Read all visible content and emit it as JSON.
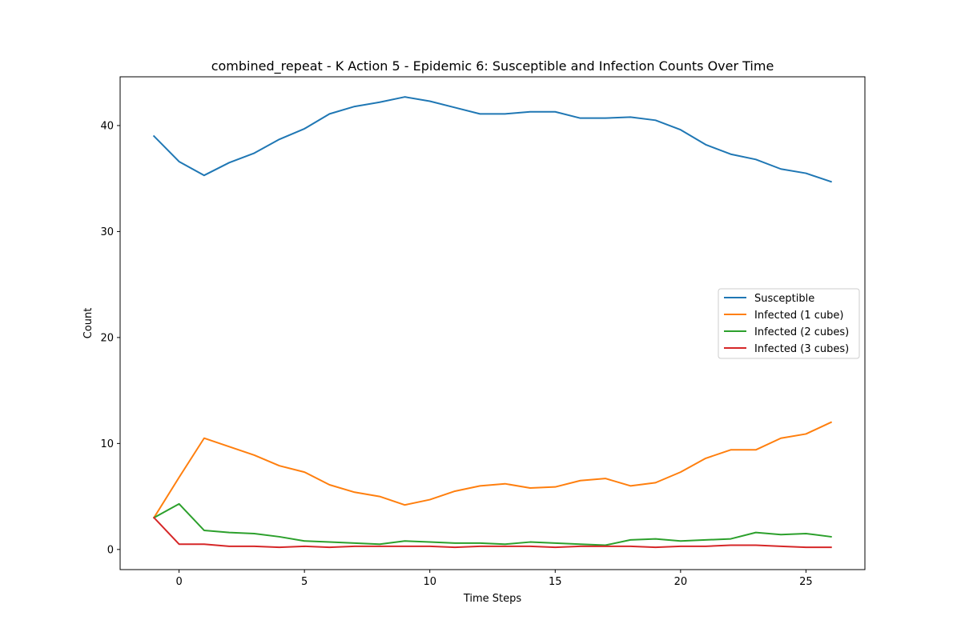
{
  "chart_data": {
    "type": "line",
    "title": "combined_repeat - K Action 5 - Epidemic 6: Susceptible and Infection Counts Over Time",
    "xlabel": "Time Steps",
    "ylabel": "Count",
    "xlim": [
      -2.35,
      27.35
    ],
    "ylim": [
      -1.9,
      44.6
    ],
    "xticks": [
      0,
      5,
      10,
      15,
      20,
      25
    ],
    "yticks": [
      0,
      10,
      20,
      30,
      40
    ],
    "grid": false,
    "legend_position": "center-right",
    "x": [
      -1,
      0,
      1,
      2,
      3,
      4,
      5,
      6,
      7,
      8,
      9,
      10,
      11,
      12,
      13,
      14,
      15,
      16,
      17,
      18,
      19,
      20,
      21,
      22,
      23,
      24,
      25,
      26
    ],
    "series": [
      {
        "name": "Susceptible",
        "color": "#1f77b4",
        "values": [
          39.0,
          36.6,
          35.3,
          36.5,
          37.4,
          38.7,
          39.7,
          41.1,
          41.8,
          42.2,
          42.7,
          42.3,
          41.7,
          41.1,
          41.1,
          41.3,
          41.3,
          40.7,
          40.7,
          40.8,
          40.5,
          39.6,
          38.2,
          37.3,
          36.8,
          35.9,
          35.5,
          34.7
        ]
      },
      {
        "name": "Infected (1 cube)",
        "color": "#ff7f0e",
        "values": [
          3.0,
          6.8,
          10.5,
          9.7,
          8.9,
          7.9,
          7.3,
          6.1,
          5.4,
          5.0,
          4.2,
          4.7,
          5.5,
          6.0,
          6.2,
          5.8,
          5.9,
          6.5,
          6.7,
          6.0,
          6.3,
          7.3,
          8.6,
          9.4,
          9.4,
          10.5,
          10.9,
          12.0
        ]
      },
      {
        "name": "Infected (2 cubes)",
        "color": "#2ca02c",
        "values": [
          3.0,
          4.3,
          1.8,
          1.6,
          1.5,
          1.2,
          0.8,
          0.7,
          0.6,
          0.5,
          0.8,
          0.7,
          0.6,
          0.6,
          0.5,
          0.7,
          0.6,
          0.5,
          0.4,
          0.9,
          1.0,
          0.8,
          0.9,
          1.0,
          1.6,
          1.4,
          1.5,
          1.2
        ]
      },
      {
        "name": "Infected (3 cubes)",
        "color": "#d62728",
        "values": [
          3.0,
          0.5,
          0.5,
          0.3,
          0.3,
          0.2,
          0.3,
          0.2,
          0.3,
          0.3,
          0.3,
          0.3,
          0.2,
          0.3,
          0.3,
          0.3,
          0.2,
          0.3,
          0.3,
          0.3,
          0.2,
          0.3,
          0.3,
          0.4,
          0.4,
          0.3,
          0.2,
          0.2
        ]
      }
    ]
  }
}
